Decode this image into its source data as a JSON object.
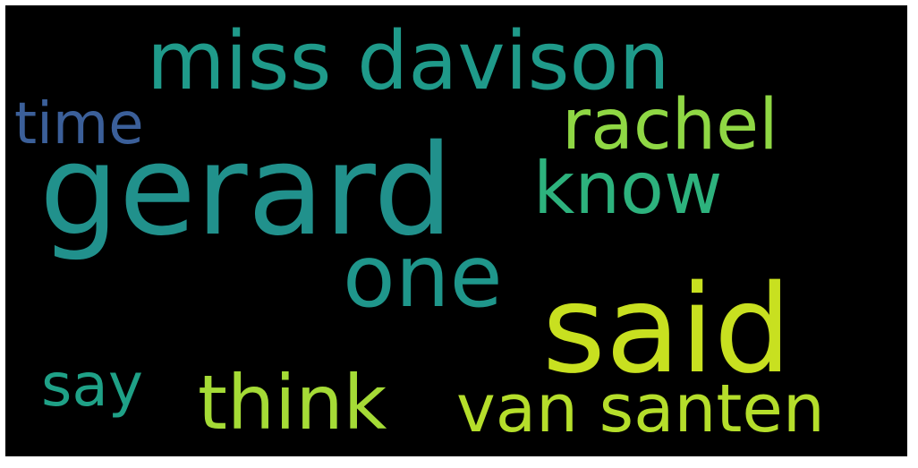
{
  "background_color": "#000000",
  "words": [
    {
      "text": "miss davison",
      "color": "#1f9a8a"
    },
    {
      "text": "time",
      "color": "#3b5f99"
    },
    {
      "text": "rachel",
      "color": "#8fd744"
    },
    {
      "text": "gerard",
      "color": "#21918c"
    },
    {
      "text": "know",
      "color": "#2db27d"
    },
    {
      "text": "one",
      "color": "#1f968b"
    },
    {
      "text": "said",
      "color": "#c8e020"
    },
    {
      "text": "say",
      "color": "#1fa187"
    },
    {
      "text": "think",
      "color": "#a5db36"
    },
    {
      "text": "van santen",
      "color": "#b5de2b"
    }
  ]
}
